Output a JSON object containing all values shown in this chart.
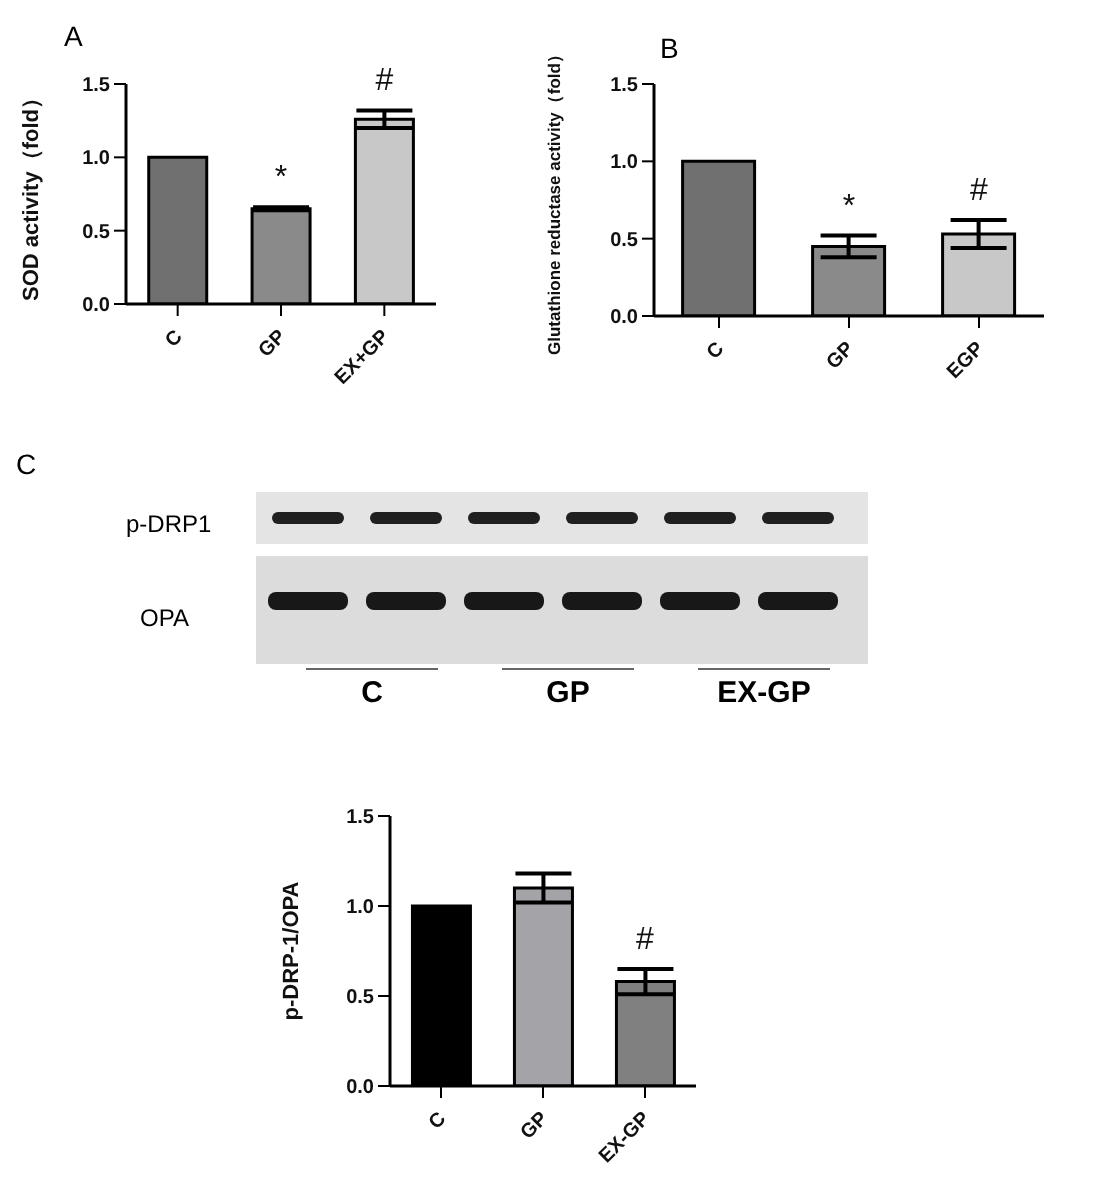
{
  "chart_data": [
    {
      "type": "bar",
      "title": "A",
      "ylabel": "SOD activity（fold）",
      "categories": [
        "C",
        "GP",
        "EX+GP"
      ],
      "values": [
        1.0,
        0.65,
        1.26
      ],
      "errors": [
        null,
        0.01,
        0.06
      ],
      "colors": [
        "#707070",
        "#8a8a8a",
        "#c8c8c8"
      ],
      "ylim": [
        0,
        1.5
      ],
      "yticks": [
        {
          "value": 0,
          "label": "0.0"
        },
        {
          "value": 0.5,
          "label": "0.5"
        },
        {
          "value": 1,
          "label": "1.0"
        },
        {
          "value": 1.5,
          "label": "1.5"
        }
      ],
      "annotations": [
        "*",
        "#"
      ]
    },
    {
      "type": "bar",
      "title": "B",
      "ylabel": "Glutathione reductase activity（fold）",
      "categories": [
        "C",
        "GP",
        "EGP"
      ],
      "values": [
        1.0,
        0.45,
        0.53
      ],
      "errors": [
        null,
        0.07,
        0.09
      ],
      "colors": [
        "#707070",
        "#8a8a8a",
        "#c8c8c8"
      ],
      "ylim": [
        0,
        1.5
      ],
      "yticks": [
        {
          "value": 0,
          "label": "0.0"
        },
        {
          "value": 0.5,
          "label": "0.5"
        },
        {
          "value": 1,
          "label": "1.0"
        },
        {
          "value": 1.5,
          "label": "1.5"
        }
      ],
      "annotations": [
        "*",
        "#"
      ]
    },
    {
      "type": "other",
      "title": "C",
      "annotations": [
        "p-DRP1",
        "OPA",
        "C",
        "GP",
        "EX-GP"
      ]
    },
    {
      "type": "bar",
      "ylabel": "p-DRP-1/OPA",
      "categories": [
        "C",
        "GP",
        "EX-GP"
      ],
      "values": [
        1.0,
        1.1,
        0.58
      ],
      "errors": [
        null,
        0.08,
        0.07
      ],
      "colors": [
        "#000000",
        "#a3a3a8",
        "#808080"
      ],
      "ylim": [
        0,
        1.5
      ],
      "yticks": [
        {
          "value": 0,
          "label": "0.0"
        },
        {
          "value": 0.5,
          "label": "0.5"
        },
        {
          "value": 1,
          "label": "1.0"
        },
        {
          "value": 1.5,
          "label": "1.5"
        }
      ],
      "annotations": [
        "#"
      ]
    }
  ]
}
